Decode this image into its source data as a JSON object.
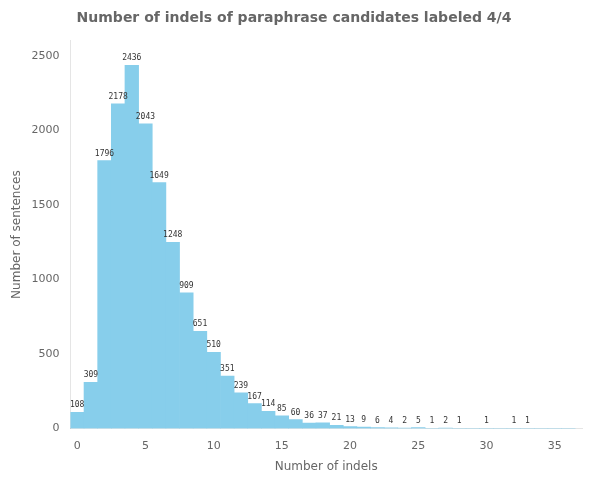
{
  "chart_data": {
    "type": "bar",
    "title": "Number of indels of paraphrase candidates labeled 4/4",
    "xlabel": "Number of indels",
    "ylabel": "Number of sentences",
    "color": "#87CEEB",
    "x": [
      0,
      1,
      2,
      3,
      4,
      5,
      6,
      7,
      8,
      9,
      10,
      11,
      12,
      13,
      14,
      15,
      16,
      17,
      18,
      19,
      20,
      21,
      22,
      23,
      24,
      25,
      26,
      27,
      28,
      29,
      30,
      31,
      32,
      33,
      34,
      35,
      36
    ],
    "values": [
      108,
      309,
      1796,
      2178,
      2436,
      2043,
      1649,
      1248,
      909,
      651,
      510,
      351,
      239,
      167,
      114,
      85,
      60,
      36,
      37,
      21,
      13,
      9,
      6,
      4,
      2,
      5,
      1,
      2,
      1,
      0,
      1,
      0,
      1,
      1,
      0,
      0,
      0
    ],
    "value_labels": [
      "108",
      "309",
      "1796",
      "2178",
      "2436",
      "2043",
      "1649",
      "1248",
      "909",
      "651",
      "510",
      "351",
      "239",
      "167",
      "114",
      "85",
      "60",
      "36",
      "37",
      "21",
      "13",
      "9",
      "6",
      "4",
      "2",
      "5",
      "1",
      "2",
      "1",
      null,
      "1",
      null,
      "1",
      "1",
      null,
      null,
      null
    ],
    "data_labels": true,
    "xlim": [
      -0.5,
      37
    ],
    "xticks": [
      0,
      5,
      10,
      15,
      20,
      25,
      30,
      35
    ],
    "ylim": [
      0,
      2600
    ],
    "yticks": [
      0,
      500,
      1000,
      1500,
      2000,
      2500
    ],
    "grid": false
  }
}
